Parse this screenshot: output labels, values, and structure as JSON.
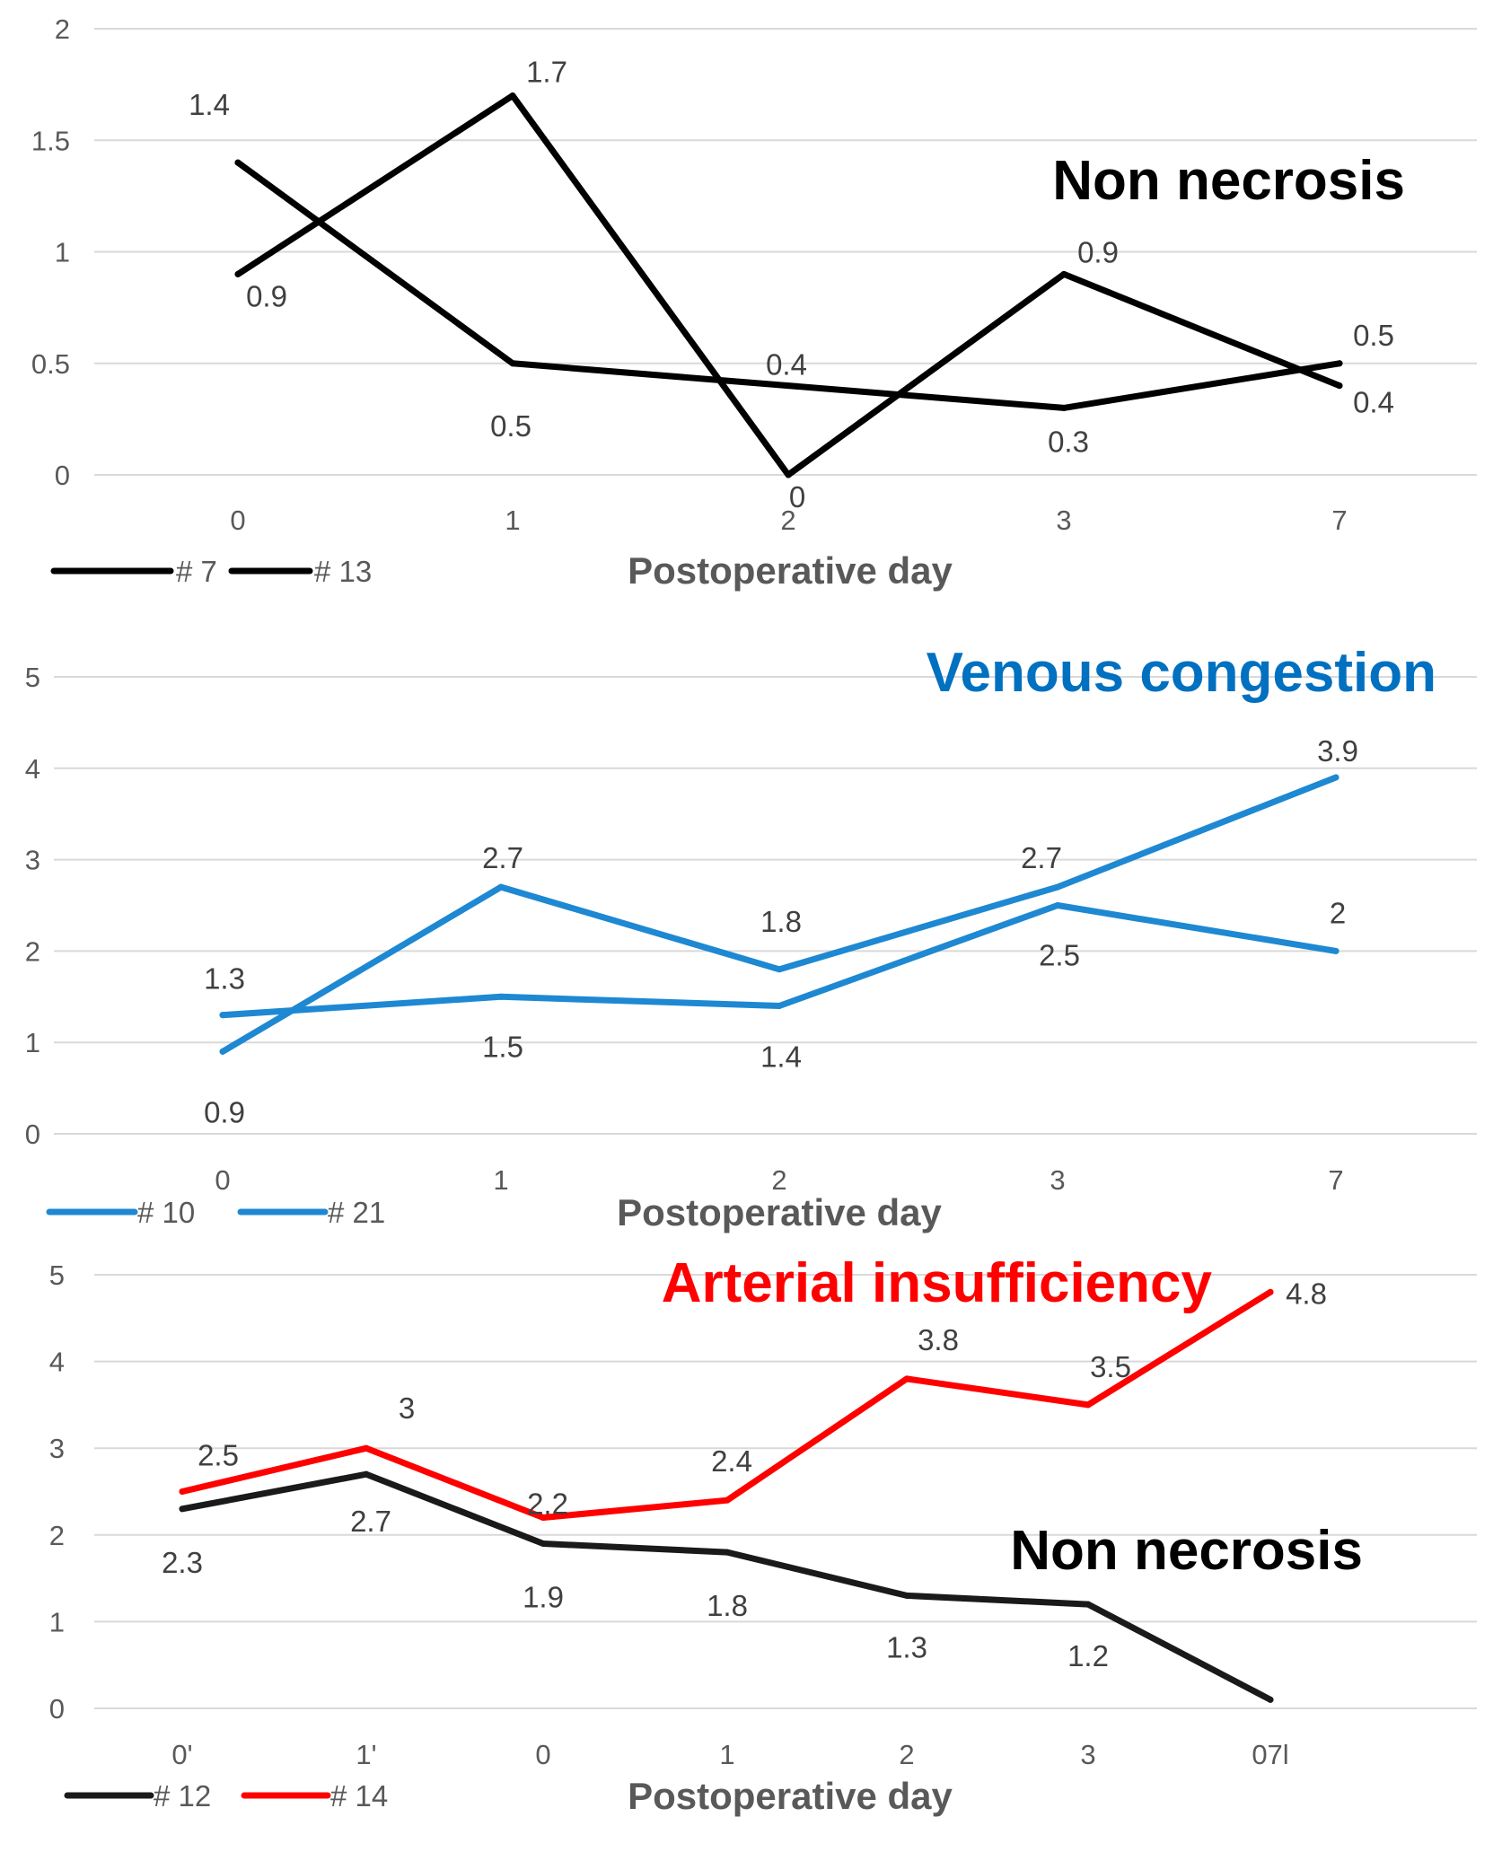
{
  "chart_data": [
    {
      "type": "line",
      "title": "Non necrosis",
      "title_color": "#000000",
      "xlabel": "Postoperative day",
      "ylabel": "",
      "categories": [
        "0",
        "1",
        "2",
        "3",
        "7"
      ],
      "yticks": [
        "0",
        "0.5",
        "1",
        "1.5",
        "2"
      ],
      "ylim": [
        0,
        2
      ],
      "grid": true,
      "legend_position": "bottom-left",
      "series": [
        {
          "name": "# 7",
          "color": "#000000",
          "values": [
            0.9,
            1.7,
            0,
            0.9,
            0.4
          ],
          "labels": [
            "0.9",
            "1.7",
            "0",
            "0.9",
            "0.4"
          ]
        },
        {
          "name": "# 13",
          "color": "#000000",
          "values": [
            1.4,
            0.5,
            0.4,
            0.3,
            0.5
          ],
          "labels": [
            "1.4",
            "0.5",
            "0.4",
            "0.3",
            "0.5"
          ]
        }
      ]
    },
    {
      "type": "line",
      "title": "Venous congestion",
      "title_color": "#0070C0",
      "xlabel": "Postoperative day",
      "ylabel": "",
      "categories": [
        "0",
        "1",
        "2",
        "3",
        "7"
      ],
      "yticks": [
        "0",
        "1",
        "2",
        "3",
        "4",
        "5"
      ],
      "ylim": [
        0,
        5
      ],
      "grid": true,
      "legend_position": "bottom-left",
      "series": [
        {
          "name": "# 10",
          "color": "#1E88D2",
          "values": [
            0.9,
            2.7,
            1.8,
            2.7,
            3.9
          ],
          "labels": [
            "0.9",
            "2.7",
            "1.8",
            "2.7",
            "3.9"
          ]
        },
        {
          "name": "# 21",
          "color": "#1E88D2",
          "values": [
            1.3,
            1.5,
            1.4,
            2.5,
            2
          ],
          "labels": [
            "1.3",
            "1.5",
            "1.4",
            "2.5",
            "2"
          ]
        }
      ]
    },
    {
      "type": "line",
      "title": "Arterial insufficiency",
      "title_color": "#FF0000",
      "annotation": "Non necrosis",
      "xlabel": "Postoperative day",
      "ylabel": "",
      "categories": [
        "0'",
        "1'",
        "0",
        "1",
        "2",
        "3",
        "07l"
      ],
      "yticks": [
        "0",
        "1",
        "2",
        "3",
        "4",
        "5"
      ],
      "ylim": [
        0,
        5
      ],
      "grid": true,
      "legend_position": "bottom-left",
      "series": [
        {
          "name": "# 12",
          "color": "#1a1a1a",
          "values": [
            2.3,
            2.7,
            1.9,
            1.8,
            1.3,
            1.2,
            0.1
          ],
          "labels": [
            "2.3",
            "2.7",
            "1.9",
            "1.8",
            "1.3",
            "1.2",
            ""
          ]
        },
        {
          "name": "# 14",
          "color": "#FF0000",
          "values": [
            2.5,
            3,
            2.2,
            2.4,
            3.8,
            3.5,
            4.8
          ],
          "labels": [
            "2.5",
            "3",
            "2.2",
            "2.4",
            "3.8",
            "3.5",
            "4.8"
          ]
        }
      ]
    }
  ]
}
